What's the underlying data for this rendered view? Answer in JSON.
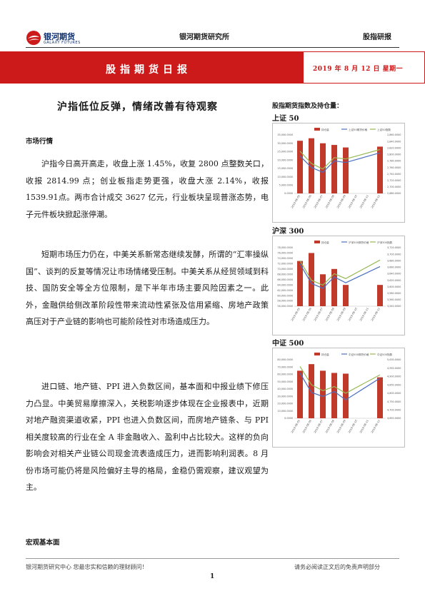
{
  "header": {
    "logo_cn": "银河期货",
    "logo_en": "GALAXY FUTURES",
    "center": "银河期货研究所",
    "right": "股指研报"
  },
  "banner": {
    "title": "股指期货日报",
    "date": "2019 年 8 月 12 日  星期一",
    "color": "#cc1a1a"
  },
  "headline": "沪指低位反弹，情绪改善有待观察",
  "market_section": "市场行情",
  "paragraphs": [
    "沪指今日高开高走，收盘上涨 1.45%，收复 2800 点整数关口，收报 2814.99 点；创业板指走势更强，收盘大涨 2.14%，收报 1539.91点。两市合计成交 3627 亿元，行业板块呈现普涨态势，电子元件板块掀起涨停潮。",
    "短期市场压力仍在，中美关系新常态继续发酵，所谓的“汇率操纵国”、谈判的反复等情况让市场情绪受压制。中美关系从经贸领域到科技、国防安全等全方位限制，是下半年市场主要风险因素之一。此外，金融供给侧改革阶段性带来流动性紧张及信用紧缩、房地产政策高压对于产业链的影响也可能阶段性对市场造成压力。",
    "进口链、地产链、PPI 进入负数区间，基本面和中报业绩下修压力凸显。中美贸易摩擦深入，关税影响逐步体现在企业报表中，近期对地产融资渠道收紧，PPI 也进入负数区间，而房地产链条、与 PPI 相关度较高的行业在全 A 非金融收入、盈利中占比较大。这样的负向影响会对相关产业链公司现金流表造成压力，进而影响利润表。8 月份市场可能仍将是风险偏好主导的格局，金稳仍需观察，建议观望为主。"
  ],
  "macro_section": "宏观基本面",
  "right_caption": "股指期货指数及持仓量：",
  "chart_data": [
    {
      "type": "bar",
      "label": "上证 50",
      "categories": [
        "2019-08-05",
        "2019-08-06",
        "2019-08-07",
        "2019-08-08",
        "2019-08-09",
        "2019-08-10",
        "2019-08-11",
        "2019-08-12"
      ],
      "legend": [
        "持仓量",
        "上证50期货价格",
        "上证50指数"
      ],
      "bar_values": [
        31500,
        33000,
        30000,
        29000,
        27500,
        null,
        null,
        28000
      ],
      "left_ylim": [
        0,
        35000
      ],
      "left_ticks": [
        0,
        5000,
        10000,
        15000,
        20000,
        25000,
        30000,
        35000
      ],
      "right_ylim": [
        2680,
        2860
      ],
      "right_ticks": [
        2680,
        2700,
        2720,
        2740,
        2760,
        2780,
        2800,
        2820,
        2840,
        2860
      ],
      "line1": [
        2810,
        2772,
        2755,
        2790,
        2786,
        null,
        null,
        2815
      ],
      "line2": [
        2795,
        2760,
        2745,
        2780,
        2775,
        null,
        null,
        2805
      ],
      "colors": {
        "bar": "#c0392b",
        "line1": "#98b954",
        "line2": "#4a6fc0"
      }
    },
    {
      "type": "bar",
      "label": "沪深 300",
      "categories": [
        "2019-08-05",
        "2019-08-06",
        "2019-08-07",
        "2019-08-08",
        "2019-08-09",
        "2019-08-10",
        "2019-08-11",
        "2019-08-12"
      ],
      "legend": [
        "持仓量",
        "沪深300期货价格",
        "沪深300指数"
      ],
      "bar_values": [
        73000,
        76000,
        68000,
        70000,
        64000,
        null,
        null,
        64000
      ],
      "left_ylim": [
        56000,
        78000
      ],
      "left_ticks": [
        56000,
        58000,
        60000,
        62000,
        64000,
        66000,
        68000,
        70000,
        72000,
        74000,
        76000,
        78000
      ],
      "right_ylim": [
        3540,
        3720
      ],
      "right_ticks": [
        3540,
        3560,
        3580,
        3600,
        3620,
        3640,
        3660,
        3680,
        3700,
        3720
      ],
      "line1": [
        3680,
        3620,
        3605,
        3640,
        3625,
        null,
        null,
        3682
      ],
      "line2": [
        3670,
        3610,
        3595,
        3630,
        3612,
        null,
        null,
        3662
      ],
      "colors": {
        "bar": "#c0392b",
        "line1": "#98b954",
        "line2": "#4a6fc0"
      }
    },
    {
      "type": "bar",
      "label": "中证 500",
      "categories": [
        "2019-08-05",
        "2019-08-06",
        "2019-08-07",
        "2019-08-08",
        "2019-08-09",
        "2019-08-10",
        "2019-08-11",
        "2019-08-12"
      ],
      "legend": [
        "持仓量",
        "中证500期货价格",
        "中证500指数"
      ],
      "bar_values": [
        65000,
        74000,
        65000,
        62000,
        61000,
        null,
        null,
        56000
      ],
      "left_ylim": [
        0,
        80000
      ],
      "left_ticks": [
        0,
        10000,
        20000,
        30000,
        40000,
        50000,
        60000,
        70000,
        80000
      ],
      "right_ylim": [
        4650,
        5000
      ],
      "right_ticks": [
        4650,
        4700,
        4750,
        4800,
        4850,
        4900,
        4950,
        5000
      ],
      "line1": [
        4960,
        4850,
        4815,
        4840,
        4800,
        null,
        null,
        4910
      ],
      "line2": [
        4920,
        4805,
        4780,
        4810,
        4760,
        null,
        null,
        4890
      ],
      "colors": {
        "bar": "#c0392b",
        "line1": "#98b954",
        "line2": "#4a6fc0"
      }
    }
  ],
  "footer": {
    "left": "银河期货研究中心  您最忠实和信赖的理财顾问！",
    "right": "请务必阅读正文后的免责声明部分",
    "page": "1"
  }
}
